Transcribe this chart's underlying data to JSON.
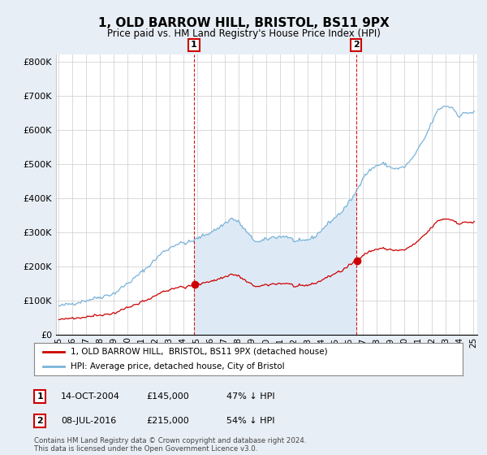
{
  "title": "1, OLD BARROW HILL, BRISTOL, BS11 9PX",
  "subtitle": "Price paid vs. HM Land Registry's House Price Index (HPI)",
  "hpi_color": "#7ab3d9",
  "price_color": "#cc0000",
  "fill_color": "#ddeaf6",
  "marker1_date": 2004.79,
  "marker1_price": 145000,
  "marker1_label": "1",
  "marker2_date": 2016.52,
  "marker2_price": 215000,
  "marker2_label": "2",
  "ylim": [
    0,
    820000
  ],
  "xlim": [
    1994.8,
    2025.3
  ],
  "yticks": [
    0,
    100000,
    200000,
    300000,
    400000,
    500000,
    600000,
    700000,
    800000
  ],
  "ytick_labels": [
    "£0",
    "£100K",
    "£200K",
    "£300K",
    "£400K",
    "£500K",
    "£600K",
    "£700K",
    "£800K"
  ],
  "xticks": [
    1995,
    1996,
    1997,
    1998,
    1999,
    2000,
    2001,
    2002,
    2003,
    2004,
    2005,
    2006,
    2007,
    2008,
    2009,
    2010,
    2011,
    2012,
    2013,
    2014,
    2015,
    2016,
    2017,
    2018,
    2019,
    2020,
    2021,
    2022,
    2023,
    2024,
    2025
  ],
  "legend_entry1": "1, OLD BARROW HILL,  BRISTOL, BS11 9PX (detached house)",
  "legend_entry2": "HPI: Average price, detached house, City of Bristol",
  "table_row1": [
    "1",
    "14-OCT-2004",
    "£145,000",
    "47% ↓ HPI"
  ],
  "table_row2": [
    "2",
    "08-JUL-2016",
    "£215,000",
    "54% ↓ HPI"
  ],
  "footer": "Contains HM Land Registry data © Crown copyright and database right 2024.\nThis data is licensed under the Open Government Licence v3.0.",
  "bg_color": "#e8eef5",
  "plot_bg": "#ffffff"
}
